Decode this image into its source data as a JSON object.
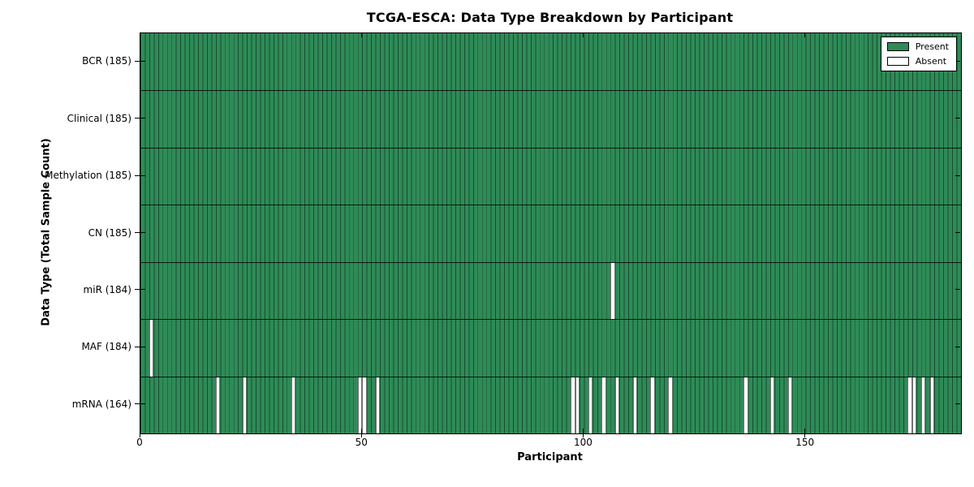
{
  "chart_data": {
    "type": "heatmap",
    "title": "TCGA-ESCA: Data Type Breakdown by Participant",
    "xlabel": "Participant",
    "ylabel": "Data Type (Total Sample Count)",
    "x_range": [
      0,
      185
    ],
    "x_ticks": [
      0,
      50,
      100,
      150
    ],
    "n_participants": 185,
    "grid": false,
    "legend_position": "upper right",
    "legend": {
      "present": "Present",
      "absent": "Absent"
    },
    "colors": {
      "present": "#2e8b57",
      "absent": "#ffffff",
      "bar_edge": "#000000"
    },
    "rows": [
      {
        "name": "BCR",
        "label": "BCR (185)",
        "count": 185,
        "absent_participants": []
      },
      {
        "name": "Clinical",
        "label": "Clinical (185)",
        "count": 185,
        "absent_participants": []
      },
      {
        "name": "Methylation",
        "label": "Methylation (185)",
        "count": 185,
        "absent_participants": []
      },
      {
        "name": "CN",
        "label": "CN (185)",
        "count": 185,
        "absent_participants": []
      },
      {
        "name": "miR",
        "label": "miR (184)",
        "count": 184,
        "absent_participants": [
          106
        ]
      },
      {
        "name": "MAF",
        "label": "MAF (184)",
        "count": 184,
        "absent_participants": [
          2
        ]
      },
      {
        "name": "mRNA",
        "label": "mRNA (164)",
        "count": 164,
        "absent_participants": [
          17,
          23,
          34,
          49,
          50,
          53,
          97,
          98,
          101,
          104,
          107,
          111,
          115,
          119,
          136,
          142,
          146,
          173,
          174,
          176,
          178
        ]
      }
    ]
  }
}
